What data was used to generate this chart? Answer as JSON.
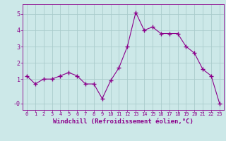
{
  "x": [
    0,
    1,
    2,
    3,
    4,
    5,
    6,
    7,
    8,
    9,
    10,
    11,
    12,
    13,
    14,
    15,
    16,
    17,
    18,
    19,
    20,
    21,
    22,
    23
  ],
  "y": [
    1.2,
    0.7,
    1.0,
    1.0,
    1.2,
    1.4,
    1.2,
    0.7,
    0.7,
    -0.2,
    0.9,
    1.7,
    3.0,
    5.1,
    4.0,
    4.2,
    3.8,
    3.8,
    3.8,
    3.0,
    2.6,
    1.6,
    1.2,
    -0.5
  ],
  "line_color": "#8b008b",
  "marker": "+",
  "marker_size": 4,
  "marker_linewidth": 1.0,
  "bg_color": "#cce8e8",
  "grid_color": "#aacccc",
  "tick_color": "#8b008b",
  "xlabel": "Windchill (Refroidissement éolien,°C)",
  "xlabel_fontsize": 6.5,
  "ytick_positions": [
    -0.5,
    1,
    2,
    3,
    4,
    5
  ],
  "ytick_labels": [
    "-0",
    "1",
    "2",
    "3",
    "4",
    "5"
  ],
  "ylim": [
    -0.9,
    5.6
  ],
  "xlim": [
    -0.5,
    23.5
  ],
  "xtick_fontsize": 5.0,
  "ytick_fontsize": 6.0,
  "linewidth": 0.8
}
